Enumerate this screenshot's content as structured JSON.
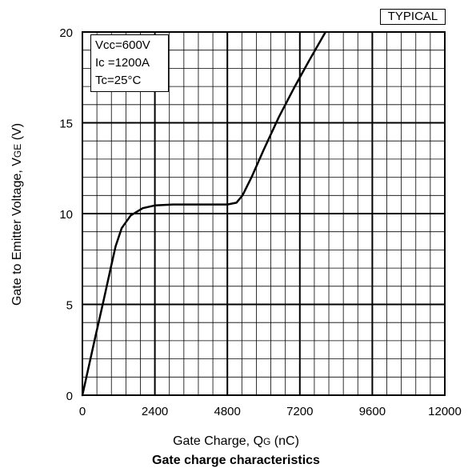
{
  "badge": "TYPICAL",
  "conditions": [
    "Vcc=600V",
    "Ic =1200A",
    "Tc=25°C"
  ],
  "axis_labels": {
    "x_main": "Gate Charge, Q",
    "x_sub": "G",
    "x_unit": " (nC)",
    "y_main": "Gate to Emitter Voltage, V",
    "y_sub": "GE",
    "y_unit": " (V)"
  },
  "caption": "Gate charge characteristics",
  "chart_data": {
    "type": "line",
    "title": "Gate charge characteristics",
    "xlabel": "Gate Charge, QG (nC)",
    "ylabel": "Gate to Emitter Voltage, VGE (V)",
    "xlim": [
      0,
      12000
    ],
    "ylim": [
      0,
      20
    ],
    "xticks": [
      "0",
      "2400",
      "4800",
      "7200",
      "9600",
      "12000"
    ],
    "yticks": [
      "0",
      "5",
      "10",
      "15",
      "20"
    ],
    "grid": true,
    "minor_x_step": 480,
    "minor_y_step": 1,
    "series": [
      {
        "x": [
          0,
          400,
          700,
          950,
          1100,
          1300,
          1600,
          2000,
          2400,
          3000,
          4000,
          4800,
          5100,
          5300,
          5600,
          6000,
          6500,
          7000,
          7500,
          8050
        ],
        "y": [
          0,
          3.0,
          5.2,
          7.1,
          8.2,
          9.2,
          9.9,
          10.3,
          10.45,
          10.5,
          10.5,
          10.5,
          10.6,
          11.0,
          12.0,
          13.5,
          15.3,
          16.9,
          18.4,
          20.0
        ]
      }
    ]
  }
}
